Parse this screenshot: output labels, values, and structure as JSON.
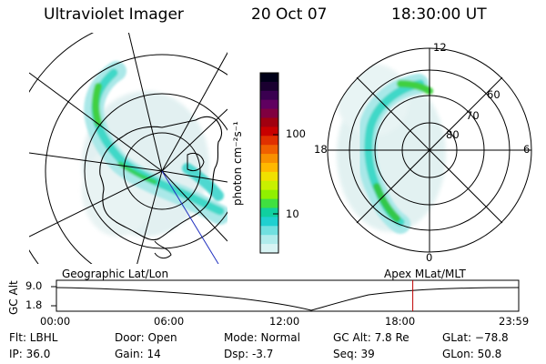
{
  "header": {
    "instrument": "Ultraviolet Imager",
    "date": "20 Oct 07",
    "time": "18:30:00 UT"
  },
  "left_panel": {
    "caption": "Geographic Lat/Lon"
  },
  "right_panel": {
    "caption": "Apex MLat/MLT",
    "mlt_labels": [
      "12",
      "6",
      "0",
      "18"
    ],
    "lat_labels": [
      "60",
      "70",
      "80"
    ]
  },
  "colorbar": {
    "unit_label": "photon cm⁻²s⁻¹",
    "ticks": [
      "100",
      "10"
    ],
    "colors": [
      "#000018",
      "#1a0030",
      "#3a0050",
      "#600060",
      "#800040",
      "#a00010",
      "#c80000",
      "#e03000",
      "#f06000",
      "#f89000",
      "#ffb800",
      "#f0e000",
      "#c8f000",
      "#90f000",
      "#40e040",
      "#10d0a0",
      "#20d0d0",
      "#70e0e0",
      "#b0ecec",
      "#d8f4f4"
    ]
  },
  "timeline": {
    "axis_label": "GC Alt",
    "y_ticks": [
      "9.0",
      "1.8"
    ],
    "x_ticks": [
      "00:00",
      "06:00",
      "12:00",
      "18:00",
      "23:59"
    ],
    "current_time_hours": 18.5,
    "marker_color": "#c00000"
  },
  "info": {
    "filter": "Flt: LBHL",
    "ip": "IP: 36.0",
    "door": "Door: Open",
    "gain": "Gain: 14",
    "mode": "Mode: Normal",
    "dsp": "Dsp:    -3.7",
    "gc_alt": "GC Alt: 7.8 Re",
    "seq": "Seq: 39",
    "glat": "GLat: −78.8",
    "glon": "GLon:  50.8"
  }
}
